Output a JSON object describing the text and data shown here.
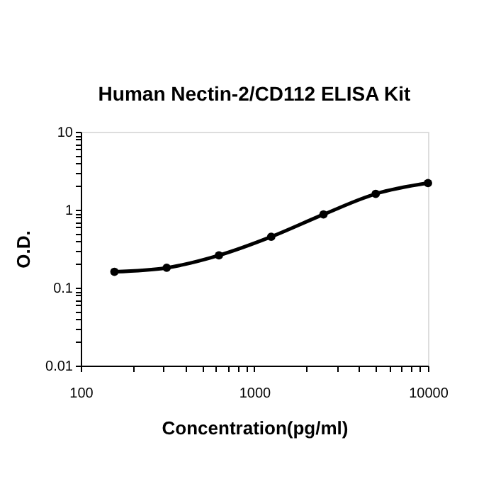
{
  "chart_data": {
    "type": "line",
    "title": "Human Nectin-2/CD112 ELISA Kit",
    "xlabel": "Concentration(pg/ml)",
    "ylabel": "O.D.",
    "x": [
      156.25,
      312.5,
      625,
      1250,
      2500,
      5000,
      10000
    ],
    "series": [
      {
        "color": "#000000",
        "values": [
          0.16,
          0.18,
          0.26,
          0.45,
          0.87,
          1.6,
          2.2
        ]
      }
    ],
    "log": "xy",
    "xlim": [
      100,
      10000
    ],
    "ylim": [
      0.01,
      10
    ],
    "xticks": [
      100,
      {
        "value": 200,
        "label": null
      },
      {
        "value": 300,
        "label": null
      },
      {
        "value": 400,
        "label": null
      },
      {
        "value": 500,
        "label": null
      },
      {
        "value": 600,
        "label": null
      },
      {
        "value": 700,
        "label": null
      },
      {
        "value": 800,
        "label": null
      },
      {
        "value": 900,
        "label": null
      },
      1000,
      {
        "value": 2000,
        "label": null
      },
      {
        "value": 3000,
        "label": null
      },
      {
        "value": 4000,
        "label": null
      },
      {
        "value": 5000,
        "label": null
      },
      {
        "value": 6000,
        "label": null
      },
      {
        "value": 7000,
        "label": null
      },
      {
        "value": 8000,
        "label": null
      },
      {
        "value": 9000,
        "label": null
      },
      10000
    ],
    "yticks": [
      {
        "value": 0.01,
        "label": "0.01"
      },
      {
        "value": 0.02,
        "label": null
      },
      {
        "value": 0.03,
        "label": null
      },
      {
        "value": 0.04,
        "label": null
      },
      {
        "value": 0.05,
        "label": null
      },
      {
        "value": 0.06,
        "label": null
      },
      {
        "value": 0.07,
        "label": null
      },
      {
        "value": 0.08,
        "label": null
      },
      {
        "value": 0.09,
        "label": null
      },
      {
        "value": 0.1,
        "label": "0.1"
      },
      {
        "value": 0.2,
        "label": null
      },
      {
        "value": 0.3,
        "label": null
      },
      {
        "value": 0.4,
        "label": null
      },
      {
        "value": 0.5,
        "label": null
      },
      {
        "value": 0.6,
        "label": null
      },
      {
        "value": 0.7,
        "label": null
      },
      {
        "value": 0.8,
        "label": null
      },
      {
        "value": 0.9,
        "label": null
      },
      1,
      {
        "value": 2,
        "label": null
      },
      {
        "value": 3,
        "label": null
      },
      {
        "value": 4,
        "label": null
      },
      {
        "value": 5,
        "label": null
      },
      {
        "value": 6,
        "label": null
      },
      {
        "value": 7,
        "label": null
      },
      {
        "value": 8,
        "label": null
      },
      {
        "value": 9,
        "label": null
      },
      10
    ],
    "grid": false,
    "marker": "circle",
    "line_style": "solid"
  }
}
